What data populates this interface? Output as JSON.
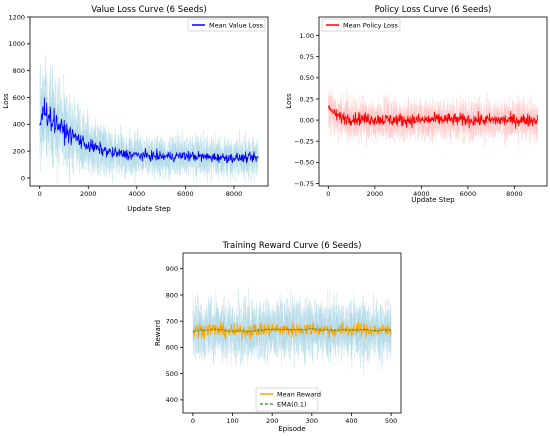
{
  "chart_data": [
    {
      "type": "line",
      "title": "Value Loss Curve (6 Seeds)",
      "xlabel": "Update Step",
      "ylabel": "Loss",
      "xlim": [
        -400,
        9400
      ],
      "ylim": [
        -60,
        1200
      ],
      "xticks": [
        0,
        2000,
        4000,
        6000,
        8000
      ],
      "xtick_labels": [
        "0",
        "2000",
        "4000",
        "6000",
        "8000"
      ],
      "yticks": [
        0,
        200,
        400,
        600,
        800,
        1000,
        1200
      ],
      "ytick_labels": [
        "0",
        "200",
        "400",
        "600",
        "800",
        "1000",
        "1200"
      ],
      "grid": false,
      "legend_position": "upper-right",
      "series": [
        {
          "name": "Mean Value Loss",
          "color": "#0000ff",
          "seed_band_color": "#add8e6",
          "x": [
            0,
            200,
            500,
            800,
            1000,
            1500,
            2000,
            3000,
            4000,
            5000,
            6000,
            7000,
            8000,
            9000
          ],
          "values": [
            400,
            520,
            430,
            390,
            350,
            300,
            240,
            185,
            170,
            160,
            165,
            155,
            150,
            150
          ]
        }
      ]
    },
    {
      "type": "line",
      "title": "Policy Loss Curve (6 Seeds)",
      "xlabel": "Update Step",
      "ylabel": "Loss",
      "xlim": [
        -400,
        9400
      ],
      "ylim": [
        -0.78,
        1.22
      ],
      "xticks": [
        0,
        2000,
        4000,
        6000,
        8000
      ],
      "xtick_labels": [
        "0",
        "2000",
        "4000",
        "6000",
        "8000"
      ],
      "yticks": [
        -0.75,
        -0.5,
        -0.25,
        0.0,
        0.25,
        0.5,
        0.75,
        1.0
      ],
      "ytick_labels": [
        "−0.75",
        "−0.50",
        "−0.25",
        "0.00",
        "0.25",
        "0.50",
        "0.75",
        "1.00"
      ],
      "grid": false,
      "legend_position": "upper-left",
      "series": [
        {
          "name": "Mean Policy Loss",
          "color": "#ff0000",
          "seed_band_color": "#ffc0c0",
          "x": [
            0,
            100,
            500,
            1000,
            2000,
            3000,
            4000,
            5000,
            6000,
            7000,
            8000,
            9000
          ],
          "values": [
            0.15,
            0.12,
            0.03,
            0.02,
            0.01,
            0.0,
            0.0,
            0.01,
            0.0,
            0.0,
            0.0,
            0.0
          ]
        }
      ]
    },
    {
      "type": "line",
      "title": "Training Reward Curve (6 Seeds)",
      "xlabel": "Episode",
      "ylabel": "Reward",
      "xlim": [
        -25,
        525
      ],
      "ylim": [
        350,
        960
      ],
      "xticks": [
        0,
        100,
        200,
        300,
        400,
        500
      ],
      "xtick_labels": [
        "0",
        "100",
        "200",
        "300",
        "400",
        "500"
      ],
      "yticks": [
        400,
        500,
        600,
        700,
        800,
        900
      ],
      "ytick_labels": [
        "400",
        "500",
        "600",
        "700",
        "800",
        "900"
      ],
      "grid": false,
      "legend_position": "lower-center",
      "series": [
        {
          "name": "Mean Reward",
          "color": "#ffa500",
          "seed_band_color": "#add8e6",
          "x": [
            0,
            50,
            100,
            150,
            200,
            250,
            300,
            350,
            400,
            450,
            500
          ],
          "values": [
            665,
            670,
            660,
            665,
            670,
            668,
            672,
            665,
            668,
            665,
            665
          ]
        },
        {
          "name": "EMA(0.1)",
          "color": "#2e8b2e",
          "style": "dashed",
          "x": [
            0,
            50,
            100,
            150,
            200,
            250,
            300,
            350,
            400,
            450,
            500
          ],
          "values": [
            665,
            668,
            662,
            664,
            668,
            667,
            670,
            666,
            667,
            665,
            665
          ]
        }
      ]
    }
  ]
}
